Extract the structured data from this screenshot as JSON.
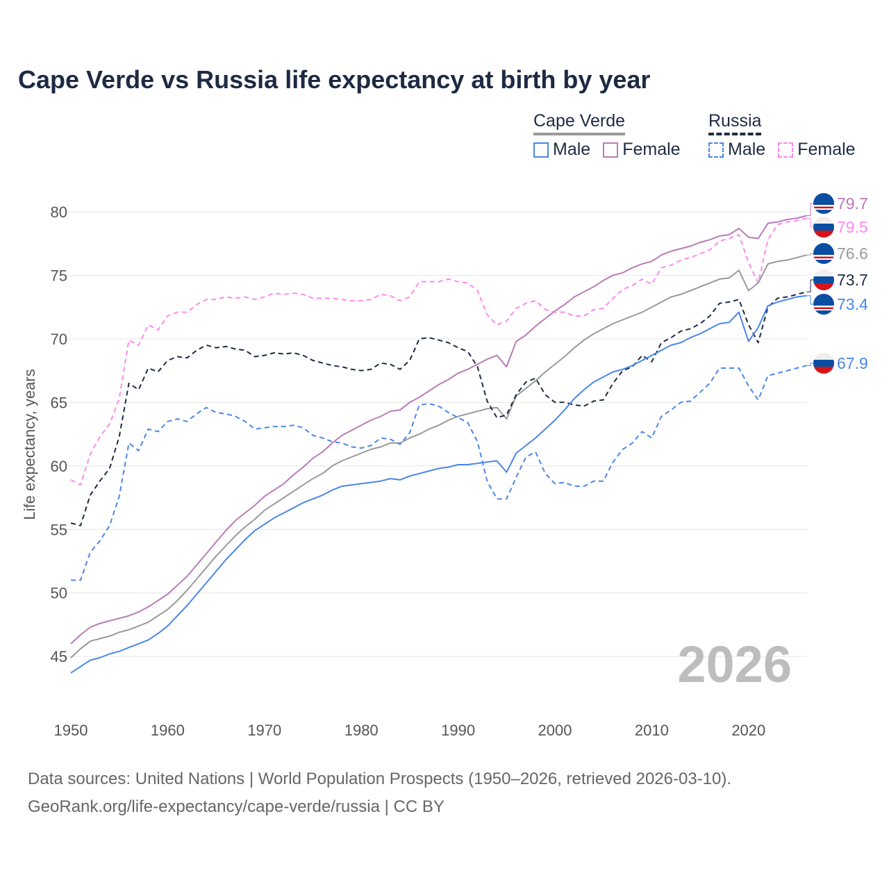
{
  "chart_data": {
    "type": "line",
    "title": "Cape Verde vs Russia life expectancy at birth by year",
    "xlabel": "",
    "ylabel": "Life expectancy, years",
    "xlim": [
      1950,
      2026
    ],
    "ylim": [
      42,
      82
    ],
    "x_ticks": [
      1950,
      1960,
      1970,
      1980,
      1990,
      2000,
      2010,
      2020
    ],
    "y_ticks": [
      45,
      50,
      55,
      60,
      65,
      70,
      75,
      80
    ],
    "grid": true,
    "watermark_year": "2026",
    "legend": {
      "placement": "top-right",
      "groups": [
        {
          "name": "Cape Verde",
          "items": [
            "Male",
            "Female"
          ]
        },
        {
          "name": "Russia",
          "items": [
            "Male",
            "Female"
          ]
        }
      ]
    },
    "x_start": 1950,
    "series": [
      {
        "name": "Cape Verde Female",
        "country": "cv",
        "color": "#b87bb8",
        "dash": false,
        "end_label": "79.7",
        "values": [
          46.0,
          46.7,
          47.3,
          47.6,
          47.8,
          48.0,
          48.2,
          48.5,
          48.9,
          49.4,
          49.9,
          50.6,
          51.3,
          52.2,
          53.1,
          54.0,
          54.9,
          55.7,
          56.3,
          56.9,
          57.6,
          58.1,
          58.6,
          59.3,
          59.9,
          60.6,
          61.1,
          61.8,
          62.4,
          62.8,
          63.2,
          63.6,
          63.9,
          64.3,
          64.4,
          65.0,
          65.4,
          65.9,
          66.4,
          66.8,
          67.3,
          67.6,
          68.0,
          68.4,
          68.7,
          67.8,
          69.8,
          70.3,
          71.0,
          71.6,
          72.2,
          72.7,
          73.3,
          73.7,
          74.1,
          74.6,
          75.0,
          75.2,
          75.6,
          75.9,
          76.1,
          76.6,
          76.9,
          77.1,
          77.3,
          77.6,
          77.8,
          78.1,
          78.2,
          78.7,
          78.0,
          77.9,
          79.1,
          79.2,
          79.4,
          79.5,
          79.7
        ]
      },
      {
        "name": "Russia Female",
        "country": "ru",
        "color": "#ff88f0",
        "dash": true,
        "end_label": "79.5",
        "values": [
          58.9,
          58.5,
          60.9,
          62.3,
          63.3,
          65.3,
          69.9,
          69.5,
          71.1,
          70.7,
          71.8,
          72.1,
          72.1,
          72.7,
          73.1,
          73.1,
          73.3,
          73.2,
          73.3,
          73.1,
          73.3,
          73.6,
          73.5,
          73.6,
          73.5,
          73.2,
          73.2,
          73.2,
          73.1,
          73.0,
          73.0,
          73.1,
          73.5,
          73.4,
          73.0,
          73.3,
          74.5,
          74.5,
          74.5,
          74.7,
          74.5,
          74.4,
          73.8,
          71.9,
          71.1,
          71.4,
          72.4,
          72.8,
          73.0,
          72.3,
          72.1,
          72.1,
          71.8,
          71.8,
          72.3,
          72.4,
          73.2,
          73.9,
          74.2,
          74.7,
          74.3,
          75.6,
          75.8,
          76.2,
          76.4,
          76.7,
          77.0,
          77.7,
          77.9,
          78.2,
          76.0,
          74.4,
          77.8,
          79.0,
          79.2,
          79.3,
          79.5
        ]
      },
      {
        "name": "Cape Verde",
        "country": "cv",
        "color": "#999999",
        "dash": false,
        "end_label": "76.6",
        "values": [
          44.9,
          45.6,
          46.2,
          46.4,
          46.6,
          46.9,
          47.1,
          47.4,
          47.7,
          48.2,
          48.7,
          49.4,
          50.2,
          51.1,
          52.0,
          52.9,
          53.7,
          54.5,
          55.2,
          55.8,
          56.5,
          57.0,
          57.5,
          58.0,
          58.5,
          59.0,
          59.4,
          60.0,
          60.4,
          60.7,
          61.0,
          61.3,
          61.5,
          61.8,
          61.8,
          62.2,
          62.5,
          62.9,
          63.2,
          63.6,
          63.9,
          64.1,
          64.3,
          64.5,
          64.6,
          63.7,
          65.5,
          66.1,
          66.7,
          67.4,
          68.0,
          68.6,
          69.3,
          69.9,
          70.4,
          70.8,
          71.2,
          71.5,
          71.8,
          72.1,
          72.5,
          72.9,
          73.3,
          73.5,
          73.8,
          74.1,
          74.4,
          74.7,
          74.8,
          75.4,
          73.8,
          74.4,
          75.9,
          76.1,
          76.2,
          76.4,
          76.6
        ]
      },
      {
        "name": "Russia",
        "country": "ru",
        "color": "#1e2a44",
        "dash": true,
        "end_label": "73.7",
        "values": [
          55.5,
          55.3,
          57.7,
          58.8,
          59.8,
          62.3,
          66.5,
          66.0,
          67.7,
          67.4,
          68.3,
          68.6,
          68.5,
          69.1,
          69.5,
          69.3,
          69.4,
          69.2,
          69.1,
          68.6,
          68.7,
          68.9,
          68.8,
          68.9,
          68.7,
          68.3,
          68.1,
          67.9,
          67.8,
          67.6,
          67.5,
          67.6,
          68.1,
          68.0,
          67.6,
          68.3,
          70.0,
          70.1,
          69.9,
          69.7,
          69.3,
          69.0,
          67.8,
          65.1,
          63.8,
          64.0,
          65.6,
          66.6,
          66.9,
          65.6,
          65.0,
          65.0,
          64.8,
          64.7,
          65.1,
          65.2,
          66.5,
          67.5,
          67.8,
          68.7,
          68.2,
          69.7,
          70.1,
          70.6,
          70.8,
          71.2,
          71.8,
          72.8,
          72.9,
          73.1,
          71.1,
          69.7,
          72.5,
          73.2,
          73.3,
          73.5,
          73.7
        ]
      },
      {
        "name": "Cape Verde Male",
        "country": "cv",
        "color": "#4a86e8",
        "dash": false,
        "end_label": "73.4",
        "values": [
          43.7,
          44.2,
          44.7,
          44.9,
          45.2,
          45.4,
          45.7,
          46.0,
          46.3,
          46.8,
          47.4,
          48.2,
          49.0,
          49.9,
          50.8,
          51.7,
          52.6,
          53.4,
          54.2,
          54.9,
          55.4,
          55.9,
          56.3,
          56.7,
          57.1,
          57.4,
          57.7,
          58.1,
          58.4,
          58.5,
          58.6,
          58.7,
          58.8,
          59.0,
          58.9,
          59.2,
          59.4,
          59.6,
          59.8,
          59.9,
          60.1,
          60.1,
          60.2,
          60.3,
          60.4,
          59.5,
          61.0,
          61.6,
          62.2,
          62.9,
          63.6,
          64.4,
          65.3,
          66.0,
          66.6,
          67.0,
          67.4,
          67.6,
          67.9,
          68.3,
          68.7,
          69.1,
          69.5,
          69.7,
          70.1,
          70.4,
          70.8,
          71.2,
          71.3,
          72.1,
          69.8,
          70.9,
          72.6,
          72.9,
          73.1,
          73.3,
          73.4
        ]
      },
      {
        "name": "Russia Male",
        "country": "ru",
        "color": "#4a86e8",
        "dash": true,
        "end_label": "67.9",
        "values": [
          51.0,
          51.0,
          53.2,
          54.1,
          55.3,
          57.6,
          61.8,
          61.2,
          62.9,
          62.7,
          63.5,
          63.7,
          63.5,
          64.1,
          64.6,
          64.2,
          64.1,
          63.9,
          63.5,
          62.9,
          63.0,
          63.1,
          63.1,
          63.2,
          63.0,
          62.4,
          62.2,
          61.9,
          61.8,
          61.5,
          61.4,
          61.6,
          62.2,
          62.1,
          61.7,
          62.6,
          64.8,
          64.9,
          64.7,
          64.2,
          63.8,
          63.4,
          61.9,
          58.8,
          57.4,
          57.4,
          59.1,
          60.7,
          61.1,
          59.4,
          58.6,
          58.7,
          58.4,
          58.4,
          58.8,
          58.8,
          60.3,
          61.3,
          61.8,
          62.7,
          62.2,
          63.9,
          64.4,
          65.0,
          65.1,
          65.8,
          66.5,
          67.7,
          67.7,
          67.7,
          66.3,
          65.2,
          67.1,
          67.3,
          67.5,
          67.7,
          67.9
        ]
      }
    ]
  },
  "footer": {
    "line1": "Data sources: United Nations | World Population Prospects (1950–2026, retrieved 2026-03-10).",
    "line2": "GeoRank.org/life-expectancy/cape-verde/russia | CC BY"
  }
}
